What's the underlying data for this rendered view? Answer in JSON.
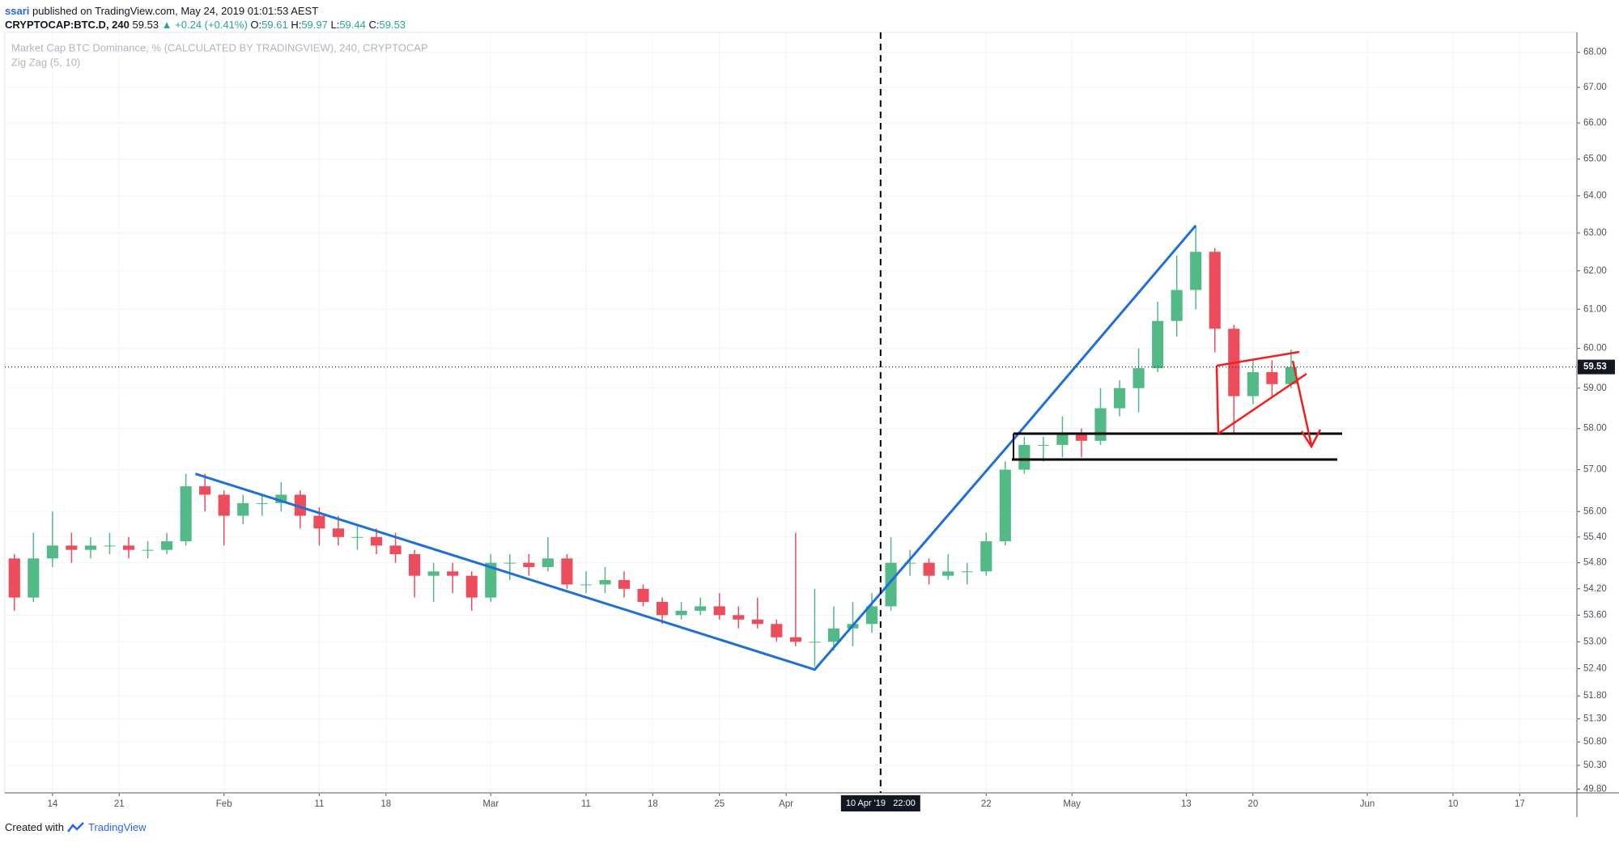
{
  "header": {
    "author": "ssari",
    "published": "published on TradingView.com, May 24, 2019 01:01:53 AEST",
    "symbol": "CRYPTOCAP:BTC.D, 240",
    "price": 59.53,
    "change": "▲ +0.24 (+0.41%)",
    "ohlc": [
      {
        "label": "O:",
        "value": 59.61
      },
      {
        "label": "H:",
        "value": 59.97
      },
      {
        "label": "L:",
        "value": 59.44
      },
      {
        "label": "C:",
        "value": 59.53
      }
    ]
  },
  "footer": {
    "text": "Created with",
    "brand": "TradingView"
  },
  "chart_data": {
    "type": "candlestick",
    "log": true,
    "grid": true,
    "xlim": [
      "2019-01-09",
      "2019-06-23"
    ],
    "ylim": [
      49.72,
      68.39
    ],
    "xticks": [
      {
        "value": "2019-01-14",
        "label": "14"
      },
      {
        "value": "2019-01-21",
        "label": "21"
      },
      {
        "value": "2019-02-01",
        "label": "Feb"
      },
      {
        "value": "2019-02-11",
        "label": "11"
      },
      {
        "value": "2019-02-18",
        "label": "18"
      },
      {
        "value": "2019-03-01",
        "label": "Mar"
      },
      {
        "value": "2019-03-11",
        "label": "11"
      },
      {
        "value": "2019-03-18",
        "label": "18"
      },
      {
        "value": "2019-03-25",
        "label": "25"
      },
      {
        "value": "2019-04-01",
        "label": "Apr"
      },
      {
        "value": "2019-04-22",
        "label": "22"
      },
      {
        "value": "2019-05-01",
        "label": "May"
      },
      {
        "value": "2019-05-13",
        "label": "13"
      },
      {
        "value": "2019-05-20",
        "label": "20"
      },
      {
        "value": "2019-06-01",
        "label": "Jun"
      },
      {
        "value": "2019-06-10",
        "label": "10"
      },
      {
        "value": "2019-06-17",
        "label": "17"
      }
    ],
    "yticks": [
      {
        "value": 68,
        "label": "68.00"
      },
      {
        "value": 67,
        "label": "67.00"
      },
      {
        "value": 66,
        "label": "66.00"
      },
      {
        "value": 65,
        "label": "65.00"
      },
      {
        "value": 64,
        "label": "64.00"
      },
      {
        "value": 63,
        "label": "63.00"
      },
      {
        "value": 62,
        "label": "62.00"
      },
      {
        "value": 61,
        "label": "61.00"
      },
      {
        "value": 60,
        "label": "60.00"
      },
      {
        "value": 59,
        "label": "59.00"
      },
      {
        "value": 58,
        "label": "58.00"
      },
      {
        "value": 57,
        "label": "57.00"
      },
      {
        "value": 56,
        "label": "56.00"
      },
      {
        "value": 55.4,
        "label": "55.40"
      },
      {
        "value": 54.8,
        "label": "54.80"
      },
      {
        "value": 54.2,
        "label": "54.20"
      },
      {
        "value": 53.6,
        "label": "53.60"
      },
      {
        "value": 53,
        "label": "53.00"
      },
      {
        "value": 52.4,
        "label": "52.40"
      },
      {
        "value": 51.8,
        "label": "51.80"
      },
      {
        "value": 51.3,
        "label": "51.30"
      },
      {
        "value": 50.8,
        "label": "50.80"
      },
      {
        "value": 50.3,
        "label": "50.30"
      },
      {
        "value": 49.8,
        "label": "49.80"
      }
    ],
    "series": [
      {
        "name": "Market Cap BTC Dominance, % (CALCULATED BY TRADINGVIEW), 240, CRYPTOCAP",
        "up_color": "#53b987",
        "down_color": "#eb4d5c",
        "x": [
          "2019-01-10",
          "2019-01-12",
          "2019-01-14",
          "2019-01-16",
          "2019-01-18",
          "2019-01-20",
          "2019-01-22",
          "2019-01-24",
          "2019-01-26",
          "2019-01-28",
          "2019-01-30",
          "2019-02-01",
          "2019-02-03",
          "2019-02-05",
          "2019-02-07",
          "2019-02-09",
          "2019-02-11",
          "2019-02-13",
          "2019-02-15",
          "2019-02-17",
          "2019-02-19",
          "2019-02-21",
          "2019-02-23",
          "2019-02-25",
          "2019-02-27",
          "2019-03-01",
          "2019-03-03",
          "2019-03-05",
          "2019-03-07",
          "2019-03-09",
          "2019-03-11",
          "2019-03-13",
          "2019-03-15",
          "2019-03-17",
          "2019-03-19",
          "2019-03-21",
          "2019-03-23",
          "2019-03-25",
          "2019-03-27",
          "2019-03-29",
          "2019-03-31",
          "2019-04-02",
          "2019-04-04",
          "2019-04-06",
          "2019-04-08",
          "2019-04-10",
          "2019-04-12",
          "2019-04-14",
          "2019-04-16",
          "2019-04-18",
          "2019-04-20",
          "2019-04-22",
          "2019-04-24",
          "2019-04-26",
          "2019-04-28",
          "2019-04-30",
          "2019-05-02",
          "2019-05-04",
          "2019-05-06",
          "2019-05-08",
          "2019-05-10",
          "2019-05-12",
          "2019-05-14",
          "2019-05-16",
          "2019-05-18",
          "2019-05-20",
          "2019-05-22",
          "2019-05-24"
        ],
        "open": [
          54.9,
          54.0,
          54.9,
          55.2,
          55.1,
          55.2,
          55.2,
          55.1,
          55.1,
          55.3,
          56.6,
          56.4,
          55.9,
          56.2,
          56.2,
          56.4,
          55.9,
          55.6,
          55.4,
          55.4,
          55.2,
          55.0,
          54.5,
          54.6,
          54.5,
          54.0,
          54.8,
          54.8,
          54.7,
          54.9,
          54.3,
          54.3,
          54.4,
          54.2,
          53.9,
          53.6,
          53.7,
          53.8,
          53.6,
          53.5,
          53.4,
          53.1,
          53.0,
          53.0,
          53.3,
          53.4,
          53.8,
          54.8,
          54.8,
          54.5,
          54.6,
          54.6,
          55.3,
          57.0,
          57.6,
          57.6,
          57.9,
          57.7,
          58.5,
          59.0,
          59.5,
          60.7,
          61.5,
          62.5,
          60.5,
          58.8,
          59.4,
          59.1
        ],
        "high": [
          55.0,
          55.5,
          56.0,
          55.5,
          55.4,
          55.5,
          55.4,
          55.3,
          55.5,
          56.9,
          56.9,
          56.5,
          56.4,
          56.4,
          56.7,
          56.5,
          56.1,
          55.9,
          55.7,
          55.6,
          55.5,
          55.1,
          54.8,
          54.8,
          54.6,
          55.0,
          55.0,
          55.0,
          55.4,
          55.0,
          54.6,
          54.7,
          54.6,
          54.3,
          54.0,
          53.9,
          54.0,
          54.1,
          53.8,
          54.0,
          53.5,
          55.5,
          54.2,
          53.8,
          53.9,
          54.1,
          55.4,
          55.1,
          54.9,
          55.0,
          54.8,
          55.5,
          57.2,
          57.8,
          57.8,
          58.3,
          58.0,
          59.0,
          59.2,
          60.0,
          61.2,
          62.4,
          63.2,
          62.6,
          60.6,
          59.7,
          59.7,
          59.97
        ],
        "low": [
          53.7,
          53.9,
          54.7,
          54.8,
          54.9,
          55.0,
          54.9,
          54.9,
          55.0,
          55.2,
          56.0,
          55.2,
          55.7,
          55.9,
          56.0,
          55.6,
          55.2,
          55.2,
          55.1,
          55.0,
          54.8,
          54.0,
          53.9,
          54.1,
          53.7,
          53.9,
          54.4,
          54.5,
          54.6,
          54.2,
          54.1,
          54.1,
          54.0,
          53.8,
          53.4,
          53.5,
          53.6,
          53.5,
          53.3,
          53.3,
          53.0,
          52.9,
          52.45,
          52.8,
          52.9,
          53.2,
          53.7,
          54.5,
          54.3,
          54.4,
          54.3,
          54.5,
          55.2,
          56.9,
          57.2,
          57.3,
          57.3,
          57.6,
          58.3,
          58.4,
          59.4,
          60.3,
          61.0,
          59.9,
          57.9,
          58.6,
          58.8,
          59.0
        ],
        "close": [
          54.0,
          54.9,
          55.2,
          55.1,
          55.2,
          55.2,
          55.1,
          55.1,
          55.3,
          56.6,
          56.4,
          55.9,
          56.2,
          56.2,
          56.4,
          55.9,
          55.6,
          55.4,
          55.4,
          55.2,
          55.0,
          54.5,
          54.6,
          54.5,
          54.0,
          54.8,
          54.8,
          54.7,
          54.9,
          54.3,
          54.3,
          54.4,
          54.2,
          53.9,
          53.6,
          53.7,
          53.8,
          53.6,
          53.5,
          53.4,
          53.1,
          53.0,
          53.0,
          53.3,
          53.4,
          53.8,
          54.8,
          54.8,
          54.5,
          54.6,
          54.6,
          55.3,
          57.0,
          57.6,
          57.6,
          57.9,
          57.7,
          58.5,
          59.0,
          59.5,
          60.7,
          61.5,
          62.5,
          60.5,
          58.8,
          59.4,
          59.1,
          59.53
        ]
      }
    ],
    "zigzag": {
      "name": "Zig Zag (5, 10)",
      "color": "#1e6fd9",
      "x": [
        "2019-01-29",
        "2019-04-04",
        "2019-04-25",
        "2019-05-14"
      ],
      "values": [
        56.9,
        52.38,
        57.77,
        63.2
      ]
    },
    "crosshair": {
      "x": "2019-04-10T22:00",
      "label": "10 Apr '19",
      "time": "22:00"
    },
    "last_price": 59.53
  }
}
